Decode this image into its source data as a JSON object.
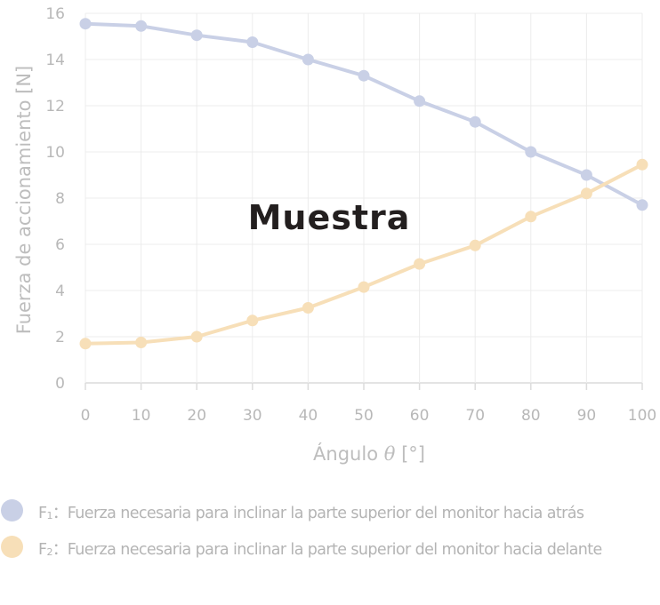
{
  "chart_data": {
    "type": "line",
    "xlabel_prefix": "Ángulo ",
    "xlabel_symbol": "θ",
    "xlabel_suffix": " [°]",
    "ylabel": "Fuerza de accionamiento  [N]",
    "xlim": [
      0,
      100
    ],
    "ylim": [
      0,
      16
    ],
    "x_ticks": [
      0,
      10,
      20,
      30,
      40,
      50,
      60,
      70,
      80,
      90,
      100
    ],
    "y_ticks": [
      0,
      2,
      4,
      6,
      8,
      10,
      12,
      14,
      16
    ],
    "grid": true,
    "x": [
      0,
      10,
      20,
      30,
      40,
      50,
      60,
      70,
      80,
      90,
      100
    ],
    "series": [
      {
        "name": "F1",
        "color": "#c9d0e6",
        "values": [
          15.55,
          15.45,
          15.05,
          14.75,
          14.0,
          13.3,
          12.2,
          11.3,
          10.0,
          9.0,
          7.7
        ]
      },
      {
        "name": "F2",
        "color": "#f7dfb8",
        "values": [
          1.7,
          1.75,
          2.0,
          2.7,
          3.25,
          4.15,
          5.15,
          5.95,
          7.2,
          8.2,
          9.45
        ]
      }
    ],
    "watermark": "Muestra"
  },
  "legend": [
    {
      "letter": "F",
      "sub": "1",
      "text": "：Fuerza necesaria para inclinar la parte superior del monitor hacia atrás",
      "color": "#c9d0e6"
    },
    {
      "letter": "F",
      "sub": "2",
      "text": "：Fuerza necesaria para inclinar la parte superior del monitor hacia delante",
      "color": "#f7dfb8"
    }
  ]
}
